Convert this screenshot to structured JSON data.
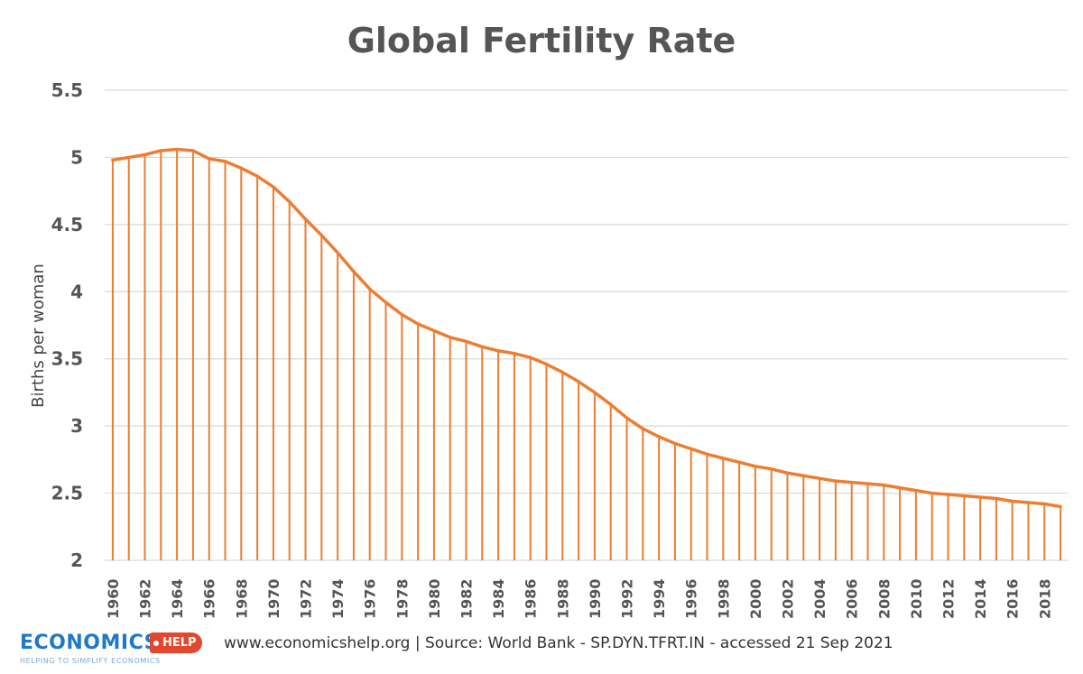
{
  "chart_data": {
    "type": "line",
    "title": "Global Fertility Rate",
    "xlabel": "",
    "ylabel": "Births per woman",
    "ylim": [
      2,
      5.5
    ],
    "yticks": [
      "5.5",
      "5",
      "4.5",
      "4",
      "3.5",
      "3",
      "2.5",
      "2"
    ],
    "grid": true,
    "drop_lines": true,
    "x": [
      1960,
      1961,
      1962,
      1963,
      1964,
      1965,
      1966,
      1967,
      1968,
      1969,
      1970,
      1971,
      1972,
      1973,
      1974,
      1975,
      1976,
      1977,
      1978,
      1979,
      1980,
      1981,
      1982,
      1983,
      1984,
      1985,
      1986,
      1987,
      1988,
      1989,
      1990,
      1991,
      1992,
      1993,
      1994,
      1995,
      1996,
      1997,
      1998,
      1999,
      2000,
      2001,
      2002,
      2003,
      2004,
      2005,
      2006,
      2007,
      2008,
      2009,
      2010,
      2011,
      2012,
      2013,
      2014,
      2015,
      2016,
      2017,
      2018,
      2019
    ],
    "xtick_labels": [
      "1960",
      "1962",
      "1964",
      "1966",
      "1968",
      "1970",
      "1972",
      "1974",
      "1976",
      "1978",
      "1980",
      "1982",
      "1984",
      "1986",
      "1988",
      "1990",
      "1992",
      "1994",
      "1996",
      "1998",
      "2000",
      "2002",
      "2004",
      "2006",
      "2008",
      "2010",
      "2012",
      "2014",
      "2016",
      "2018"
    ],
    "series": [
      {
        "name": "Births per woman",
        "color": "#ed7d31",
        "values": [
          4.98,
          5.0,
          5.02,
          5.05,
          5.06,
          5.05,
          4.99,
          4.97,
          4.92,
          4.86,
          4.78,
          4.67,
          4.54,
          4.42,
          4.29,
          4.15,
          4.02,
          3.92,
          3.83,
          3.76,
          3.71,
          3.66,
          3.63,
          3.59,
          3.56,
          3.54,
          3.51,
          3.46,
          3.4,
          3.33,
          3.25,
          3.16,
          3.06,
          2.98,
          2.92,
          2.87,
          2.83,
          2.79,
          2.76,
          2.73,
          2.7,
          2.68,
          2.65,
          2.63,
          2.61,
          2.59,
          2.58,
          2.57,
          2.56,
          2.54,
          2.52,
          2.5,
          2.49,
          2.48,
          2.47,
          2.46,
          2.44,
          2.43,
          2.42,
          2.4
        ]
      }
    ]
  },
  "footer": {
    "logo_word": "ECONOMICS",
    "logo_tag": "HELP",
    "logo_sub": "HELPING TO SIMPLIFY ECONOMICS",
    "source": "www.economicshelp.org | Source: World Bank - SP.DYN.TFRT.IN - accessed 21 Sep 2021"
  },
  "colors": {
    "line": "#ed7d31",
    "grid": "#d9d9d9",
    "brand_blue": "#1f78c8",
    "brand_red": "#e2472f"
  }
}
